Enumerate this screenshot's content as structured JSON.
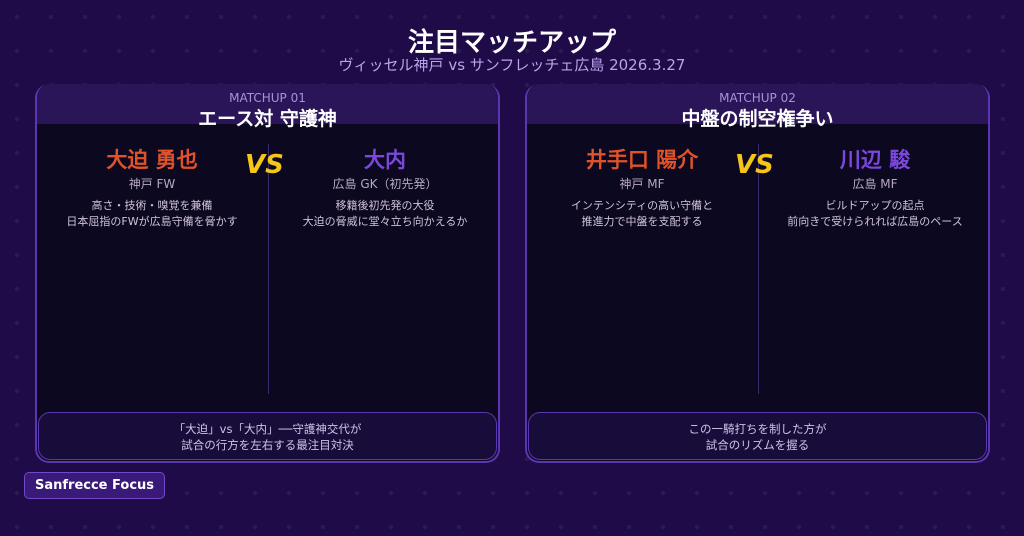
{
  "header": {
    "title": "注目マッチアップ",
    "subtitle": "ヴィッセル神戸 vs サンフレッチェ広島 2026.3.27"
  },
  "matchups": [
    {
      "label": "MATCHUP 01",
      "title": "エース対 守護神",
      "left": {
        "name": "大迫 勇也",
        "position": "神戸 FW",
        "desc1": "高さ・技術・嗅覚を兼備",
        "desc2": "日本屈指のFWが広島守備を脅かす"
      },
      "vs": "VS",
      "right": {
        "name": "大内",
        "position": "広島 GK（初先発）",
        "desc1": "移籍後初先発の大役",
        "desc2": "大迫の脅威に堂々立ち向かえるか"
      },
      "footer1": "「大迫」vs「大内」──守護神交代が",
      "footer2": "試合の行方を左右する最注目対決"
    },
    {
      "label": "MATCHUP 02",
      "title": "中盤の制空権争い",
      "left": {
        "name": "井手口 陽介",
        "position": "神戸 MF",
        "desc1": "インテンシティの高い守備と",
        "desc2": "推進力で中盤を支配する"
      },
      "vs": "VS",
      "right": {
        "name": "川辺 駿",
        "position": "広島 MF",
        "desc1": "ビルドアップの起点",
        "desc2": "前向きで受けられれば広島のペース"
      },
      "footer1": "この一騎打ちを制した方が",
      "footer2": "試合のリズムを握る"
    }
  ],
  "brand": "Sanfrecce Focus",
  "colors": {
    "kobe": "#e0532a",
    "hiroshima": "#7c48dc",
    "vs": "#f5c518",
    "background": "#1e0b48"
  }
}
